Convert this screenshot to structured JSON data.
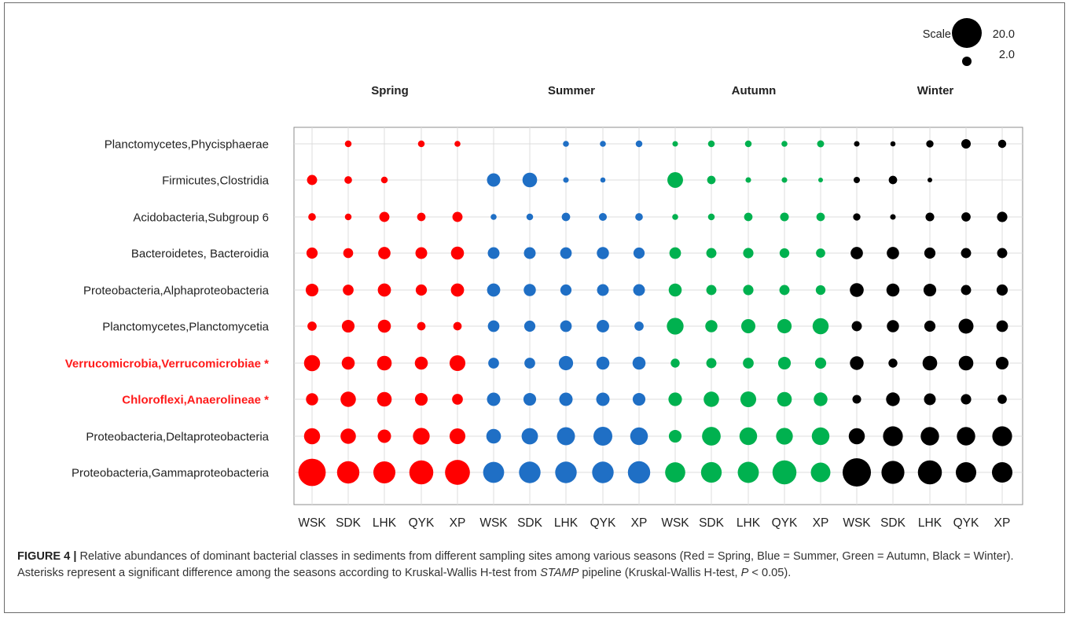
{
  "chart_data": {
    "type": "bubble-matrix",
    "scale_legend": {
      "label": "Scale",
      "entries": [
        {
          "label": "20.0",
          "value": 20.0
        },
        {
          "label": "2.0",
          "value": 2.0
        }
      ]
    },
    "seasons": [
      {
        "name": "Spring",
        "color": "#ff0000"
      },
      {
        "name": "Summer",
        "color": "#1f6fc5"
      },
      {
        "name": "Autumn",
        "color": "#00b14f"
      },
      {
        "name": "Winter",
        "color": "#000000"
      }
    ],
    "sites": [
      "WSK",
      "SDK",
      "LHK",
      "QYK",
      "XP"
    ],
    "x_tick_labels": [
      "WSK",
      "SDK",
      "LHK",
      "QYK",
      "XP",
      "WSK",
      "SDK",
      "LHK",
      "QYK",
      "XP",
      "WSK",
      "SDK",
      "LHK",
      "QYK",
      "XP",
      "WSK",
      "SDK",
      "LHK",
      "QYK",
      "XP"
    ],
    "rows": [
      {
        "label": "Planctomycetes,Phycisphaerae",
        "highlight": false,
        "values": [
          0,
          1.0,
          0,
          1.0,
          0.8,
          0,
          0,
          0.8,
          0.8,
          1.0,
          0.7,
          1.0,
          1.0,
          0.8,
          1.1,
          0.7,
          0.6,
          1.2,
          2.0,
          1.5
        ]
      },
      {
        "label": "Firmicutes,Clostridia",
        "highlight": false,
        "values": [
          2.3,
          1.3,
          1.0,
          0,
          0,
          4.0,
          4.8,
          0.7,
          0.6,
          0,
          5.5,
          1.6,
          0.7,
          0.7,
          0.5,
          0.9,
          1.6,
          0.5,
          0,
          0
        ]
      },
      {
        "label": "Acidobacteria,Subgroup 6",
        "highlight": false,
        "values": [
          1.3,
          1.0,
          2.3,
          1.6,
          2.3,
          0.8,
          1.0,
          1.6,
          1.4,
          1.3,
          0.8,
          1.0,
          1.6,
          1.7,
          1.6,
          1.2,
          0.7,
          1.7,
          1.9,
          2.4
        ]
      },
      {
        "label": "Bacteroidetes, Bacteroidia",
        "highlight": false,
        "values": [
          2.8,
          2.2,
          3.4,
          3.1,
          3.8,
          3.1,
          3.1,
          3.0,
          3.3,
          2.8,
          3.0,
          2.3,
          2.4,
          2.1,
          1.9,
          3.4,
          3.4,
          2.8,
          2.3,
          2.3
        ]
      },
      {
        "label": "Proteobacteria,Alphaproteobacteria",
        "highlight": false,
        "values": [
          3.6,
          2.6,
          3.9,
          2.8,
          3.9,
          3.9,
          3.3,
          2.8,
          3.1,
          3.1,
          3.8,
          2.3,
          2.4,
          2.3,
          2.1,
          4.3,
          3.8,
          3.6,
          2.3,
          2.8
        ]
      },
      {
        "label": "Planctomycetes,Planctomycetia",
        "highlight": false,
        "values": [
          1.9,
          3.6,
          3.8,
          1.6,
          1.6,
          3.0,
          2.8,
          3.0,
          3.5,
          1.9,
          6.3,
          3.3,
          4.5,
          4.6,
          5.8,
          2.3,
          3.3,
          2.8,
          5.0,
          3.0
        ]
      },
      {
        "label": "Verrucomicrobia,Verrucomicrobiae *",
        "highlight": true,
        "values": [
          5.8,
          3.8,
          4.8,
          3.8,
          5.6,
          2.6,
          2.6,
          4.6,
          3.8,
          3.8,
          1.8,
          2.3,
          2.6,
          3.6,
          2.8,
          4.2,
          1.8,
          4.8,
          4.8,
          3.6
        ]
      },
      {
        "label": "Chloroflexi,Anaerolineae *",
        "highlight": true,
        "values": [
          3.3,
          5.3,
          4.8,
          3.6,
          2.6,
          4.0,
          3.6,
          4.0,
          4.0,
          3.6,
          4.1,
          5.3,
          5.6,
          4.8,
          4.2,
          1.7,
          4.2,
          3.1,
          2.4,
          1.9
        ]
      },
      {
        "label": "Proteobacteria,Deltaproteobacteria",
        "highlight": false,
        "values": [
          5.8,
          5.3,
          4.0,
          6.3,
          5.6,
          4.8,
          6.0,
          7.3,
          8.0,
          7.0,
          3.6,
          7.8,
          7.0,
          6.3,
          7.0,
          5.8,
          8.8,
          7.6,
          7.6,
          8.8
        ]
      },
      {
        "label": "Proteobacteria,Gammaproteobacteria",
        "highlight": false,
        "values": [
          16.8,
          11.2,
          10.9,
          12.9,
          13.9,
          9.9,
          10.4,
          10.4,
          10.4,
          11.2,
          9.1,
          9.6,
          10.0,
          12.9,
          8.6,
          18.0,
          11.8,
          12.9,
          9.4,
          9.4
        ]
      }
    ]
  },
  "caption": {
    "figure_label": "FIGURE 4 |",
    "text_1": " Relative abundances of dominant bacterial classes in sediments from different sampling sites among various seasons (Red = Spring, Blue = Summer, Green = Autumn, Black = Winter). Asterisks represent a significant difference among the seasons according to Kruskal-Wallis H-test from ",
    "pipeline": "STAMP",
    "text_2": " pipeline (Kruskal-Wallis H-test, ",
    "p_symbol": "P",
    "text_3": " < 0.05)."
  },
  "colors": {
    "grid": "#dcdcdc",
    "highlight_label": "#ff1a1a",
    "label": "#222222"
  }
}
